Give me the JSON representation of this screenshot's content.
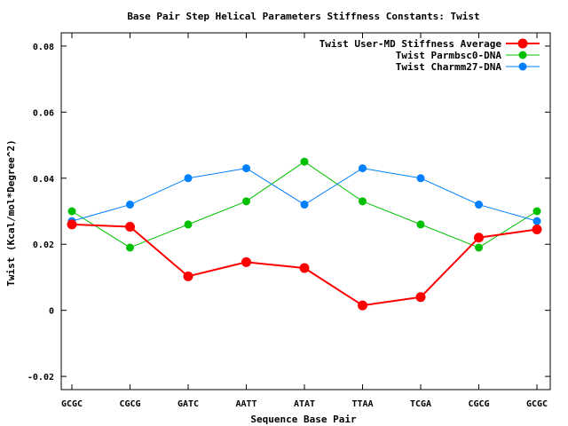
{
  "chart_data": {
    "type": "line",
    "title": "Base Pair Step Helical Parameters Stiffness Constants: Twist",
    "xlabel": "Sequence Base Pair",
    "ylabel": "Twist (Kcal/mol*Degree^2)",
    "categories": [
      "GCGC",
      "CGCG",
      "GATC",
      "AATT",
      "ATAT",
      "TTAA",
      "TCGA",
      "CGCG",
      "GCGC"
    ],
    "ylim": [
      -0.024,
      0.084
    ],
    "yticks": [
      -0.02,
      0,
      0.02,
      0.04,
      0.06,
      0.08
    ],
    "ytick_labels": [
      "-0.02",
      "0",
      "0.02",
      "0.04",
      "0.06",
      "0.08"
    ],
    "grid": false,
    "legend_position": "top-right",
    "series": [
      {
        "name": "Twist User-MD Stiffness Average",
        "color": "#ff0000",
        "values": [
          0.026,
          0.0253,
          0.0103,
          0.0146,
          0.0128,
          0.0015,
          0.004,
          0.022,
          0.0245
        ]
      },
      {
        "name": "Twist Parmbsc0-DNA",
        "color": "#00c000",
        "values": [
          0.03,
          0.019,
          0.026,
          0.033,
          0.045,
          0.033,
          0.026,
          0.019,
          0.03
        ]
      },
      {
        "name": "Twist Charmm27-DNA",
        "color": "#0080ff",
        "values": [
          0.027,
          0.032,
          0.04,
          0.043,
          0.032,
          0.043,
          0.04,
          0.032,
          0.027
        ]
      }
    ]
  }
}
